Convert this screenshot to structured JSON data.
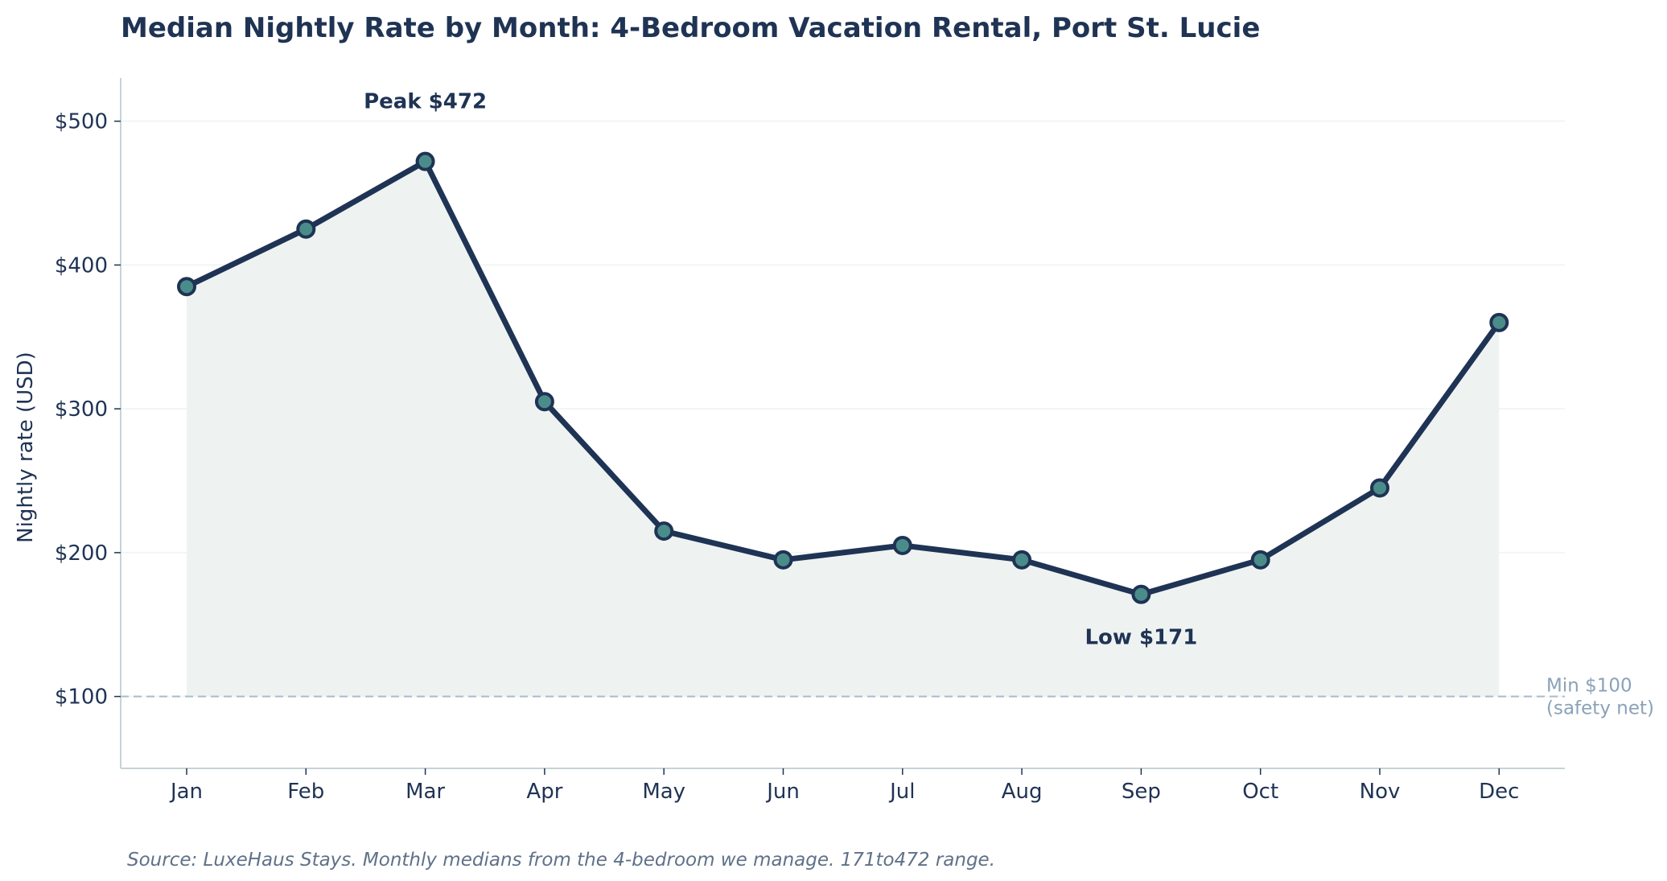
{
  "chart_data": {
    "type": "line",
    "title": "Median Nightly Rate by Month: 4-Bedroom Vacation Rental, Port St. Lucie",
    "xlabel": "",
    "ylabel": "Nightly rate (USD)",
    "categories": [
      "Jan",
      "Feb",
      "Mar",
      "Apr",
      "May",
      "Jun",
      "Jul",
      "Aug",
      "Sep",
      "Oct",
      "Nov",
      "Dec"
    ],
    "values": [
      385,
      425,
      472,
      305,
      215,
      195,
      205,
      195,
      171,
      195,
      245,
      360
    ],
    "ylim": [
      50,
      530
    ],
    "yticks": [
      100,
      200,
      300,
      400,
      500
    ],
    "ytick_labels": [
      "$100",
      "$200",
      "$300",
      "$400",
      "$500"
    ],
    "grid": true,
    "fill_area": true,
    "reference_line": {
      "value": 100,
      "label_line1": "Min $100",
      "label_line2": "(safety net)"
    },
    "annotations": [
      {
        "text": "Peak $472",
        "category": "Mar",
        "value": 472,
        "position": "above"
      },
      {
        "text": "Low $171",
        "category": "Sep",
        "value": 171,
        "position": "below"
      }
    ],
    "source_note": "Source: LuxeHaus Stays. Monthly medians from the 4-bedroom we manage. 171to472 range.",
    "colors": {
      "line": "#1f3354",
      "marker_fill": "#4a8c8a",
      "marker_edge": "#1f3354",
      "area_fill": "#eef3f2",
      "grid": "#f2f5f5",
      "axis": "#c5d4d6",
      "reference_line": "#a8bccc"
    }
  }
}
